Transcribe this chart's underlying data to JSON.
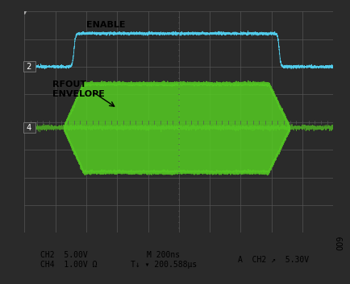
{
  "background_color": "#1a1a1a",
  "grid_color": "#555555",
  "plot_bg_color": "#1a1a1a",
  "outer_bg_color": "#2a2a2a",
  "grid_cols": 10,
  "grid_rows": 8,
  "ch2_color": "#55ddff",
  "ch4_color": "#55cc22",
  "enable_label": "ENABLE",
  "rfout_label": "RFOUT\nENVELOPE",
  "marker2_label": "2",
  "marker4_label": "4",
  "bottom_text_left": "CH2  5.00V\nCH4  1.00V Ω",
  "bottom_text_mid": "M 200ns\nT↓ ▾ 200.588μs",
  "bottom_text_right": "A  CH2 ↗  5.30V",
  "bottom_bg": "#d0d0d0",
  "label_color": "#000000",
  "marker_bg": "#222222",
  "marker_text_color": "#ffffff"
}
